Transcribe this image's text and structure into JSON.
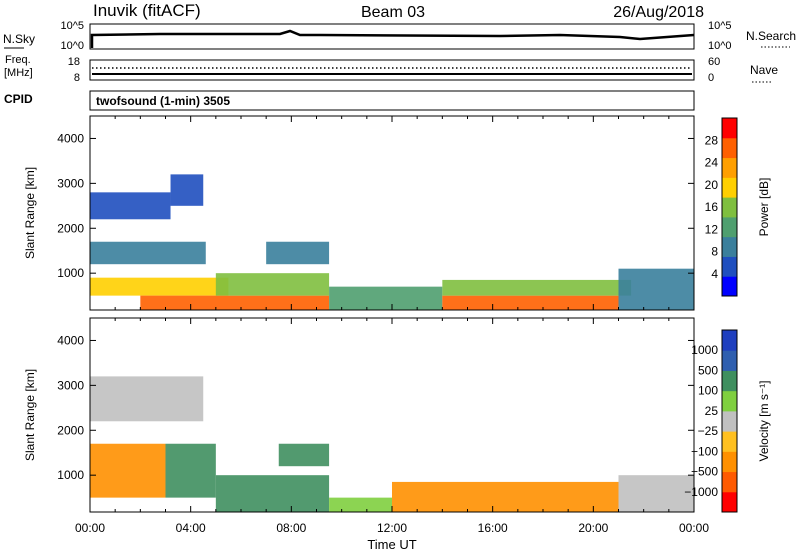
{
  "header": {
    "station": "Inuvik (fitACF)",
    "beam": "Beam 03",
    "date": "26/Aug/2018"
  },
  "strip_nsky": {
    "label_left": "N.Sky",
    "left_ticks": [
      "10^5",
      "10^0"
    ],
    "label_right": "N.Search",
    "right_ticks": [
      "10^5",
      "10^0"
    ]
  },
  "strip_freq": {
    "label_left": "Freq.",
    "label_unit": "[MHz]",
    "left_ticks": [
      "18",
      "8"
    ],
    "label_right": "Nave",
    "right_ticks": [
      "60",
      "0"
    ]
  },
  "cpid": {
    "label": "CPID",
    "value": "twofsound (1-min) 3505"
  },
  "colors": {
    "scale_power": [
      "#0000ff",
      "#1f4fbf",
      "#3a7f9c",
      "#4f9f6f",
      "#7fbf3f",
      "#ffcf00",
      "#ff9f00",
      "#ff6000",
      "#ff0000"
    ],
    "scale_velocity": [
      "#ff0000",
      "#ff5a00",
      "#ff9000",
      "#ffc020",
      "#c0c0c0",
      "#7fcf3f",
      "#3f8f5f",
      "#2f5faf",
      "#1f3fbf"
    ]
  },
  "chart_data": [
    {
      "type": "heatmap",
      "name": "power-panel",
      "xlabel": "",
      "ylabel": "Slant Range [km]",
      "xlim": [
        "00:00",
        "24:00"
      ],
      "ylim": [
        180,
        4500
      ],
      "y_ticks": [
        "4000",
        "3000",
        "2000",
        "1000"
      ],
      "colorbar": {
        "label": "Power [dB]",
        "range": [
          0,
          32
        ],
        "ticks": [
          "28",
          "24",
          "20",
          "16",
          "12",
          "8",
          "4"
        ]
      },
      "regions": [
        {
          "t0": 0.0,
          "t1": 3.2,
          "r0": 2200,
          "r1": 2800,
          "value": 6
        },
        {
          "t0": 0.0,
          "t1": 4.6,
          "r0": 1200,
          "r1": 1700,
          "value": 10
        },
        {
          "t0": 3.2,
          "t1": 4.5,
          "r0": 2500,
          "r1": 3200,
          "value": 7
        },
        {
          "t0": 0.0,
          "t1": 5.5,
          "r0": 500,
          "r1": 900,
          "value": 18
        },
        {
          "t0": 2.0,
          "t1": 9.5,
          "r0": 180,
          "r1": 500,
          "value": 28
        },
        {
          "t0": 5.0,
          "t1": 9.5,
          "r0": 500,
          "r1": 1000,
          "value": 16
        },
        {
          "t0": 7.0,
          "t1": 9.5,
          "r0": 1200,
          "r1": 1700,
          "value": 8
        },
        {
          "t0": 9.5,
          "t1": 14.0,
          "r0": 180,
          "r1": 700,
          "value": 12
        },
        {
          "t0": 14.0,
          "t1": 21.0,
          "r0": 180,
          "r1": 500,
          "value": 28
        },
        {
          "t0": 14.0,
          "t1": 21.5,
          "r0": 500,
          "r1": 850,
          "value": 16
        },
        {
          "t0": 21.0,
          "t1": 24.0,
          "r0": 180,
          "r1": 1100,
          "value": 8
        }
      ]
    },
    {
      "type": "heatmap",
      "name": "velocity-panel",
      "xlabel": "Time UT",
      "ylabel": "Slant Range [km]",
      "xlim": [
        "00:00",
        "24:00"
      ],
      "ylim": [
        180,
        4500
      ],
      "x_ticks": [
        "00:00",
        "04:00",
        "08:00",
        "12:00",
        "16:00",
        "20:00",
        "00:00"
      ],
      "y_ticks": [
        "4000",
        "3000",
        "2000",
        "1000"
      ],
      "colorbar": {
        "label": "Velocity [m s⁻¹]",
        "ticks": [
          "1000",
          "500",
          "100",
          "25",
          "−25",
          "−100",
          "−500",
          "−1000"
        ]
      },
      "regions": [
        {
          "t0": 0.0,
          "t1": 4.5,
          "r0": 2200,
          "r1": 3200,
          "value": 0
        },
        {
          "t0": 0.0,
          "t1": 3.0,
          "r0": 500,
          "r1": 1700,
          "value": -150
        },
        {
          "t0": 3.0,
          "t1": 5.0,
          "r0": 500,
          "r1": 1700,
          "value": 150
        },
        {
          "t0": 5.0,
          "t1": 9.5,
          "r0": 180,
          "r1": 1000,
          "value": 150
        },
        {
          "t0": 7.5,
          "t1": 9.5,
          "r0": 1200,
          "r1": 1700,
          "value": 300
        },
        {
          "t0": 9.5,
          "t1": 12.0,
          "r0": 180,
          "r1": 500,
          "value": 50
        },
        {
          "t0": 12.0,
          "t1": 21.0,
          "r0": 180,
          "r1": 850,
          "value": -150
        },
        {
          "t0": 21.0,
          "t1": 24.0,
          "r0": 180,
          "r1": 1000,
          "value": 0
        }
      ]
    }
  ]
}
